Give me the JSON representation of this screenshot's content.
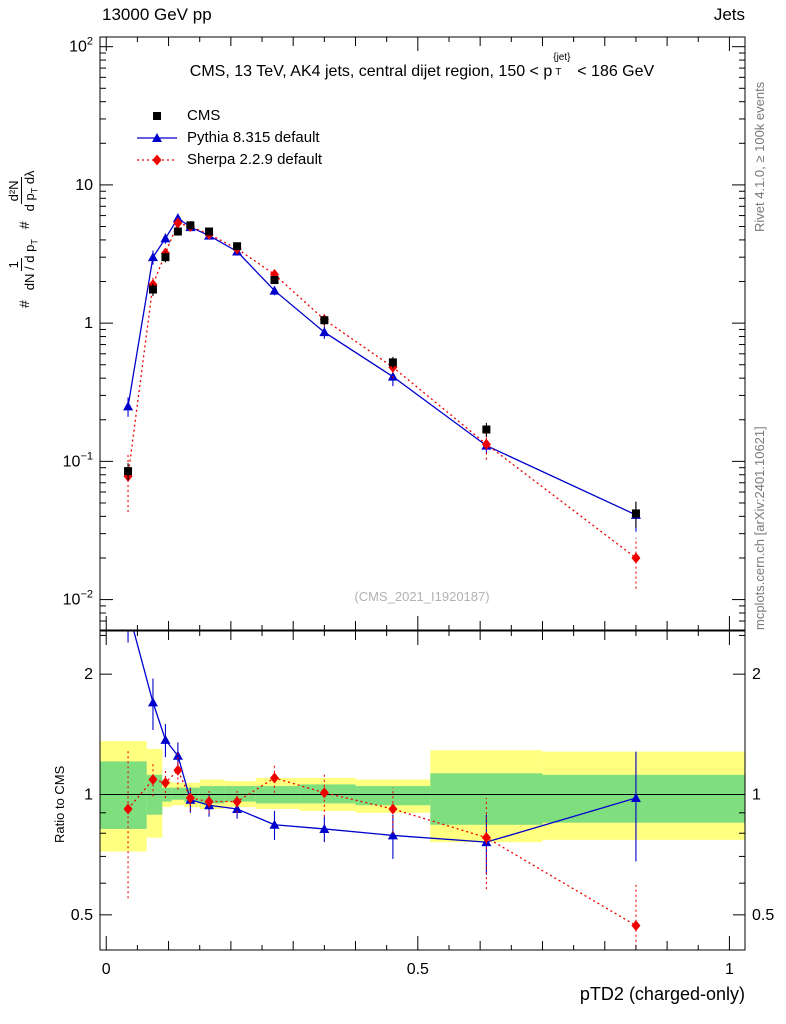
{
  "header": {
    "left": "13000 GeV pp",
    "right": "Jets"
  },
  "title": {
    "a": "CMS, 13 TeV, AK4 jets, central dijet region, 150 < p",
    "sup": "{jet}",
    "sub": "T",
    "b": "< 186 GeV"
  },
  "legend": [
    {
      "label": "CMS",
      "marker": "square",
      "color": "#000000",
      "line": "none"
    },
    {
      "label": "Pythia 8.315 default",
      "marker": "triangle",
      "color": "#0000cc",
      "line": "solid"
    },
    {
      "label": "Sherpa 2.2.9 default",
      "marker": "diamond",
      "color": "#ee0000",
      "line": "dotted"
    }
  ],
  "watermark": "(CMS_2021_I1920187)",
  "side_labels": {
    "top_right": "Rivet 4.1.0, ≥ 100k events",
    "bottom_right": "mcplots.cern.ch [arXiv:2401.10621]"
  },
  "axes": {
    "main_ylabel": {
      "prefix": "#",
      "prefix2": "#",
      "frac1_num": "1",
      "frac1_den": "dN / d p",
      "frac1_den_sub": "T",
      "frac2_num": "d²N",
      "frac2_den": "d p",
      "frac2_den_sub": "T",
      "frac2_den_tail": " dλ"
    },
    "ratio_ylabel": "Ratio to CMS",
    "xlabel": "pTD2 (charged-only)"
  },
  "chart_data": {
    "type": "line",
    "title": "CMS, 13 TeV, AK4 jets, central dijet region, 150 < pT{jet} < 186 GeV",
    "xlabel": "pTD2 (charged-only)",
    "ylabel": "# 1/(dN/dpT) # d²N/(dpT dλ)",
    "xlim": [
      -0.01,
      1.025
    ],
    "x": [
      0.035,
      0.075,
      0.095,
      0.115,
      0.135,
      0.165,
      0.21,
      0.27,
      0.35,
      0.46,
      0.61,
      0.85
    ],
    "xticks": [
      {
        "v": 0,
        "label": "0"
      },
      {
        "v": 0.5,
        "label": "0.5"
      },
      {
        "v": 1,
        "label": "1"
      }
    ],
    "main": {
      "ylog_range": [
        -2.22,
        2.07
      ],
      "yticks_exp": [
        2,
        1,
        0,
        -1,
        -2
      ],
      "series": [
        {
          "name": "CMS",
          "marker": "square",
          "color": "#000000",
          "linestyle": null,
          "values": [
            0.085,
            1.75,
            3.0,
            4.6,
            5.1,
            4.6,
            3.6,
            2.05,
            1.05,
            0.52,
            0.17,
            0.042
          ],
          "yerr": [
            0.012,
            0.18,
            0.25,
            0.3,
            0.3,
            0.25,
            0.2,
            0.13,
            0.08,
            0.05,
            0.02,
            0.009
          ]
        },
        {
          "name": "Pythia 8.315 default",
          "marker": "triangle",
          "color": "#0000cc",
          "linestyle": "solid",
          "values": [
            0.25,
            3.0,
            4.1,
            5.75,
            4.95,
            4.3,
            3.3,
            1.72,
            0.86,
            0.41,
            0.13,
            0.041
          ],
          "yerr": [
            0.04,
            0.35,
            0.35,
            0.4,
            0.3,
            0.25,
            0.2,
            0.13,
            0.09,
            0.06,
            0.015,
            0.01
          ]
        },
        {
          "name": "Sherpa 2.2.9 default",
          "marker": "diamond",
          "color": "#ee0000",
          "linestyle": "dotted",
          "values": [
            0.078,
            1.9,
            3.2,
            5.3,
            5.0,
            4.4,
            3.45,
            2.25,
            1.06,
            0.48,
            0.133,
            0.02
          ],
          "yerr": [
            0.035,
            0.3,
            0.35,
            0.45,
            0.35,
            0.3,
            0.22,
            0.17,
            0.11,
            0.08,
            0.03,
            0.008
          ]
        }
      ]
    },
    "ratio": {
      "ylog_range": [
        -0.389,
        0.409
      ],
      "yticks": [
        2,
        1,
        0.5
      ],
      "band_colors": {
        "outer": "#ffff80",
        "inner": "#7fdf7f"
      },
      "bands": [
        {
          "x": [
            -0.01,
            0.065
          ],
          "yellow": [
            0.72,
            1.36
          ],
          "green": [
            0.82,
            1.21
          ]
        },
        {
          "x": [
            0.065,
            0.09
          ],
          "yellow": [
            0.78,
            1.3
          ],
          "green": [
            0.89,
            1.12
          ]
        },
        {
          "x": [
            0.09,
            0.105
          ],
          "yellow": [
            0.93,
            1.08
          ],
          "green": [
            0.96,
            1.04
          ]
        },
        {
          "x": [
            0.105,
            0.125
          ],
          "yellow": [
            0.94,
            1.07
          ],
          "green": [
            0.97,
            1.04
          ]
        },
        {
          "x": [
            0.125,
            0.15
          ],
          "yellow": [
            0.93,
            1.07
          ],
          "green": [
            0.96,
            1.04
          ]
        },
        {
          "x": [
            0.15,
            0.19
          ],
          "yellow": [
            0.92,
            1.09
          ],
          "green": [
            0.95,
            1.05
          ]
        },
        {
          "x": [
            0.19,
            0.24
          ],
          "yellow": [
            0.93,
            1.08
          ],
          "green": [
            0.96,
            1.05
          ]
        },
        {
          "x": [
            0.24,
            0.31
          ],
          "yellow": [
            0.92,
            1.1
          ],
          "green": [
            0.95,
            1.05
          ]
        },
        {
          "x": [
            0.31,
            0.4
          ],
          "yellow": [
            0.91,
            1.1
          ],
          "green": [
            0.95,
            1.06
          ]
        },
        {
          "x": [
            0.4,
            0.52
          ],
          "yellow": [
            0.9,
            1.09
          ],
          "green": [
            0.94,
            1.05
          ]
        },
        {
          "x": [
            0.52,
            0.7
          ],
          "yellow": [
            0.76,
            1.29
          ],
          "green": [
            0.84,
            1.13
          ]
        },
        {
          "x": [
            0.7,
            1.025
          ],
          "yellow": [
            0.77,
            1.28
          ],
          "green": [
            0.85,
            1.12
          ]
        }
      ],
      "series": [
        {
          "name": "Pythia 8.315 default",
          "marker": "triangle",
          "color": "#0000cc",
          "linestyle": "solid",
          "values": [
            2.9,
            1.7,
            1.37,
            1.25,
            0.97,
            0.94,
            0.92,
            0.84,
            0.82,
            0.79,
            0.76,
            0.98
          ],
          "yerr": [
            0.5,
            0.25,
            0.13,
            0.1,
            0.07,
            0.06,
            0.05,
            0.07,
            0.06,
            0.1,
            0.13,
            0.3
          ]
        },
        {
          "name": "Sherpa 2.2.9 default",
          "marker": "diamond",
          "color": "#ee0000",
          "linestyle": "dotted",
          "values": [
            0.92,
            1.09,
            1.07,
            1.15,
            0.98,
            0.96,
            0.96,
            1.1,
            1.01,
            0.92,
            0.78,
            0.47
          ],
          "yerr": [
            0.37,
            0.1,
            0.09,
            0.12,
            0.07,
            0.06,
            0.06,
            0.09,
            0.13,
            0.12,
            0.2,
            0.13
          ]
        }
      ]
    }
  }
}
